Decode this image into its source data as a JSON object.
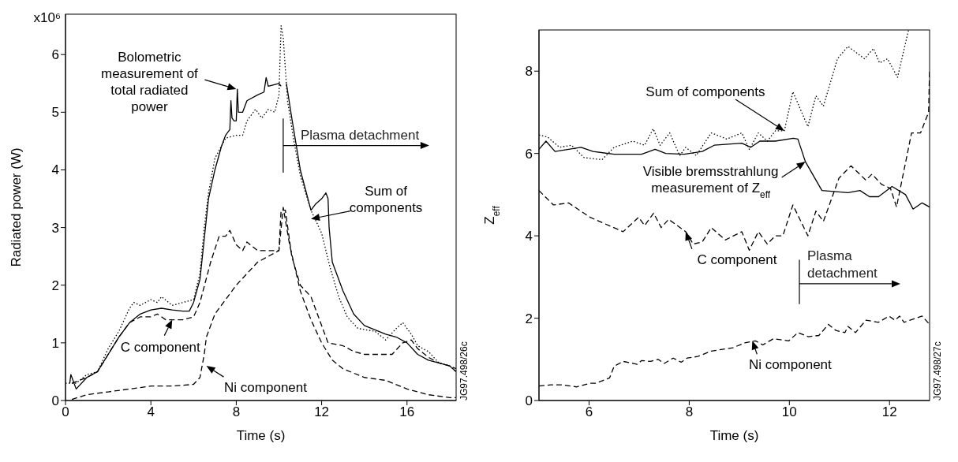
{
  "chart_data": [
    {
      "type": "line",
      "xlabel": "Time (s)",
      "ylabel": "Radiated power (W)",
      "xlim": [
        0,
        18.3
      ],
      "ylim": [
        0,
        6.7
      ],
      "xticks": [
        0,
        4,
        8,
        12,
        16
      ],
      "yticks": [
        0,
        1,
        2,
        3,
        4,
        5,
        6
      ],
      "series": [
        {
          "color": "#000000",
          "line_style": "solid",
          "x": [
            0.2,
            0.25,
            0.5,
            1,
            1.5,
            2,
            2.5,
            3,
            3.5,
            4,
            4.5,
            5,
            5.5,
            5.8,
            6,
            6.3,
            6.5,
            6.7,
            7,
            7.3,
            7.5,
            7.6,
            7.7,
            7.75,
            7.8,
            7.9,
            8,
            8.05,
            8.1,
            8.3,
            8.5,
            9,
            9.3,
            9.4,
            9.5,
            10,
            10.1,
            10.15,
            10.3,
            10.35,
            10.6,
            11,
            11.5,
            11.7,
            12,
            12.2,
            12.3,
            12.35,
            12.5,
            13,
            13.5,
            14,
            15,
            15.5,
            16,
            16.5,
            17,
            17.5,
            18,
            18.3
          ],
          "values": [
            0.3,
            0.45,
            0.2,
            0.4,
            0.5,
            0.8,
            1.1,
            1.35,
            1.5,
            1.57,
            1.6,
            1.57,
            1.55,
            1.55,
            1.7,
            2.1,
            2.8,
            3.5,
            4.0,
            4.4,
            4.6,
            4.65,
            4.7,
            5.2,
            4.9,
            4.85,
            4.85,
            5.4,
            5.0,
            5.0,
            5.2,
            5.3,
            5.35,
            5.6,
            5.45,
            5.5,
            5.45,
            null,
            null,
            5.5,
            4.9,
            4.0,
            3.3,
            3.4,
            3.5,
            3.6,
            3.5,
            3.0,
            2.4,
            1.9,
            1.5,
            1.3,
            1.15,
            1.1,
            1.0,
            0.8,
            0.7,
            0.65,
            0.6,
            0.5
          ]
        },
        {
          "color": "#000000",
          "line_style": "dotted",
          "x": [
            0,
            0.5,
            1,
            1.5,
            2,
            2.5,
            3,
            3.2,
            3.5,
            4,
            4.3,
            4.5,
            5,
            5.5,
            6,
            6.3,
            6.5,
            6.7,
            7,
            7.5,
            8,
            8.3,
            8.5,
            8.9,
            9.2,
            9.5,
            9.8,
            10,
            10.1,
            10.2,
            10.4,
            10.7,
            11,
            11.5,
            12,
            12.4,
            12.8,
            13.2,
            13.7,
            14.5,
            15,
            15.5,
            15.8,
            16.2,
            16.5,
            17,
            17.5,
            18,
            18.3
          ],
          "values": [
            0.3,
            0.3,
            0.45,
            0.5,
            0.9,
            1.2,
            1.6,
            1.7,
            1.65,
            1.75,
            1.7,
            1.8,
            1.65,
            1.7,
            1.75,
            2.2,
            3.0,
            3.6,
            4.2,
            4.55,
            4.6,
            4.6,
            4.85,
            5.05,
            4.9,
            5.05,
            5.0,
            5.3,
            6.5,
            6.3,
            5.2,
            4.5,
            3.9,
            3.3,
            2.9,
            2.3,
            1.8,
            1.45,
            1.25,
            1.2,
            1.05,
            1.25,
            1.35,
            1.15,
            0.95,
            0.85,
            0.65,
            0.6,
            0.5
          ]
        },
        {
          "color": "#000000",
          "line_style": "dashed",
          "x": [
            0.3,
            1,
            1.5,
            2,
            2.5,
            3,
            3.5,
            4,
            4.3,
            4.7,
            5,
            5.5,
            6,
            6.3,
            6.8,
            7.2,
            7.5,
            7.7,
            8,
            8.3,
            8.5,
            9,
            9.5,
            10,
            10.1,
            10.3,
            10.6,
            11,
            11.5,
            12,
            12.3,
            13,
            13.5,
            14,
            15,
            15.3,
            15.8,
            16.2,
            16.5,
            17,
            17.5,
            18,
            18.3
          ],
          "values": [
            0.3,
            0.4,
            0.5,
            0.8,
            1.1,
            1.35,
            1.45,
            1.45,
            1.5,
            1.4,
            1.4,
            1.4,
            1.45,
            1.7,
            2.4,
            2.85,
            2.85,
            2.95,
            2.7,
            2.6,
            2.75,
            2.6,
            2.6,
            2.6,
            3.3,
            3.3,
            2.5,
            2.0,
            1.8,
            1.3,
            1.0,
            0.95,
            0.85,
            0.8,
            0.8,
            0.8,
            1.0,
            1.05,
            0.9,
            0.75,
            0.65,
            0.6,
            0.55
          ]
        },
        {
          "color": "#000000",
          "line_style": "dashed",
          "x": [
            0.3,
            1,
            2,
            3,
            4,
            5,
            6,
            6.3,
            6.5,
            6.6,
            7,
            7.5,
            8,
            8.5,
            9,
            9.5,
            10,
            10.2,
            10.5,
            11,
            11.5,
            12,
            12.5,
            13,
            14,
            15,
            16,
            17,
            18,
            18.3
          ],
          "values": [
            0.02,
            0.1,
            0.15,
            0.2,
            0.25,
            0.25,
            0.28,
            0.4,
            0.8,
            1.1,
            1.5,
            1.75,
            2.0,
            2.2,
            2.4,
            2.5,
            2.6,
            3.35,
            2.7,
            1.9,
            1.4,
            1.0,
            0.7,
            0.55,
            0.4,
            0.35,
            0.2,
            0.1,
            0.05,
            0.05
          ]
        }
      ],
      "ref_lines": [
        {
          "axis": "x",
          "value": 10.2,
          "label": "Plasma detachment"
        }
      ],
      "annotations": [
        "x10⁶",
        {
          "text": "Bolometric measurement of total radiated power",
          "x": 8.0,
          "y": 5.4
        },
        {
          "text": "Sum of components",
          "x": 11.5,
          "y": 3.15
        },
        {
          "text": "C component",
          "x": 5,
          "y": 1.4
        },
        {
          "text": "Ni component",
          "x": 6.6,
          "y": 0.6
        },
        "JG97.498/26c"
      ]
    },
    {
      "type": "line",
      "xlabel": "Time (s)",
      "ylabel": "Z$_{eff}$",
      "xlim": [
        5,
        12.8
      ],
      "ylim": [
        0,
        9
      ],
      "xticks": [
        6,
        8,
        10,
        12
      ],
      "yticks": [
        0,
        2,
        4,
        6,
        8
      ],
      "series": [
        {
          "color": "#000000",
          "line_style": "solid",
          "x": [
            5,
            5.14,
            5.32,
            5.84,
            6.08,
            6.5,
            7.05,
            7.32,
            7.53,
            7.9,
            8.26,
            8.5,
            9.05,
            9.23,
            9.41,
            9.72,
            10.08,
            10.17,
            10.32,
            10.65,
            11.17,
            11.41,
            11.6,
            11.78,
            12.05,
            12.32,
            12.47,
            12.65,
            12.8
          ],
          "values": [
            6.1,
            6.3,
            6.05,
            6.15,
            6.05,
            5.98,
            5.98,
            6.1,
            6.0,
            5.98,
            6.05,
            6.2,
            6.25,
            6.15,
            6.3,
            6.3,
            6.37,
            6.35,
            5.8,
            5.1,
            5.05,
            5.1,
            4.95,
            4.95,
            5.2,
            5.0,
            4.65,
            4.8,
            4.7
          ]
        },
        {
          "color": "#000000",
          "line_style": "dotted",
          "x": [
            5,
            5.17,
            5.41,
            5.65,
            5.9,
            6.26,
            6.5,
            6.87,
            7.11,
            7.28,
            7.42,
            7.61,
            7.81,
            7.93,
            8.14,
            8.44,
            8.75,
            9.05,
            9.2,
            9.38,
            9.56,
            9.72,
            9.9,
            10.07,
            10.37,
            10.53,
            10.68,
            10.96,
            11.17,
            11.5,
            11.68,
            11.8,
            11.96,
            12.16,
            12.38
          ],
          "values": [
            6.45,
            6.4,
            6.15,
            6.2,
            5.9,
            5.85,
            6.15,
            6.3,
            6.2,
            6.6,
            6.2,
            6.5,
            5.95,
            6.15,
            5.95,
            6.5,
            6.35,
            6.5,
            6.1,
            6.5,
            6.3,
            6.55,
            6.55,
            7.5,
            6.65,
            7.4,
            7.15,
            8.3,
            8.6,
            8.3,
            8.55,
            8.2,
            8.3,
            7.85,
            9.0
          ]
        },
        {
          "color": "#000000",
          "line_style": "dashed",
          "x": [
            5,
            5.29,
            5.59,
            6.02,
            6.68,
            6.99,
            7.11,
            7.29,
            7.44,
            7.59,
            7.93,
            8.08,
            8.26,
            8.44,
            8.72,
            9.05,
            9.2,
            9.38,
            9.56,
            9.72,
            9.87,
            10.07,
            10.37,
            10.53,
            10.68,
            10.99,
            11.23,
            11.53,
            11.65,
            11.84,
            12.02,
            12.14,
            12.44,
            12.62,
            12.78,
            12.8
          ],
          "values": [
            5.1,
            4.75,
            4.8,
            4.45,
            4.1,
            4.45,
            4.25,
            4.55,
            4.2,
            4.4,
            4.1,
            3.8,
            3.85,
            4.2,
            3.9,
            4.1,
            3.65,
            4.1,
            3.8,
            4.0,
            4.0,
            4.75,
            4.0,
            4.6,
            4.35,
            5.4,
            5.7,
            5.35,
            5.5,
            5.25,
            5.15,
            4.7,
            6.5,
            6.5,
            7.0,
            8.05
          ]
        },
        {
          "color": "#000000",
          "line_style": "dashed",
          "x": [
            5,
            5.23,
            5.47,
            5.75,
            6.02,
            6.14,
            6.41,
            6.5,
            6.68,
            6.96,
            7.05,
            7.23,
            7.38,
            7.5,
            7.68,
            7.84,
            7.96,
            8.17,
            8.44,
            8.87,
            9.11,
            9.32,
            9.47,
            9.68,
            9.99,
            10.17,
            10.38,
            10.59,
            10.78,
            10.93,
            11.11,
            11.17,
            11.32,
            11.53,
            11.78,
            11.99,
            12.11,
            12.2,
            12.29,
            12.41,
            12.65,
            12.8
          ],
          "values": [
            0.35,
            0.38,
            0.38,
            0.33,
            0.42,
            0.42,
            0.55,
            0.83,
            0.95,
            0.88,
            0.97,
            0.95,
            1.0,
            0.9,
            1.03,
            0.93,
            1.03,
            1.07,
            1.2,
            1.28,
            1.4,
            1.45,
            1.35,
            1.5,
            1.45,
            1.65,
            1.55,
            1.58,
            1.85,
            1.7,
            1.65,
            1.8,
            1.65,
            1.95,
            1.9,
            2.05,
            1.95,
            2.05,
            1.9,
            1.95,
            2.05,
            1.85
          ]
        }
      ],
      "ref_lines": [
        {
          "axis": "x",
          "value": 10.2,
          "label": "Plasma detachment"
        }
      ],
      "annotations": [
        {
          "text": "Sum of components",
          "x": 9.9,
          "y": 6.55
        },
        {
          "text": "Visible bremsstrahlung measurement of Z$_{eff}$",
          "x": 10.32,
          "y": 5.8
        },
        {
          "text": "C component",
          "x": 7.93,
          "y": 4.1
        },
        {
          "text": "Ni component",
          "x": 9.26,
          "y": 1.45
        },
        "JG97.498/27c"
      ]
    }
  ]
}
